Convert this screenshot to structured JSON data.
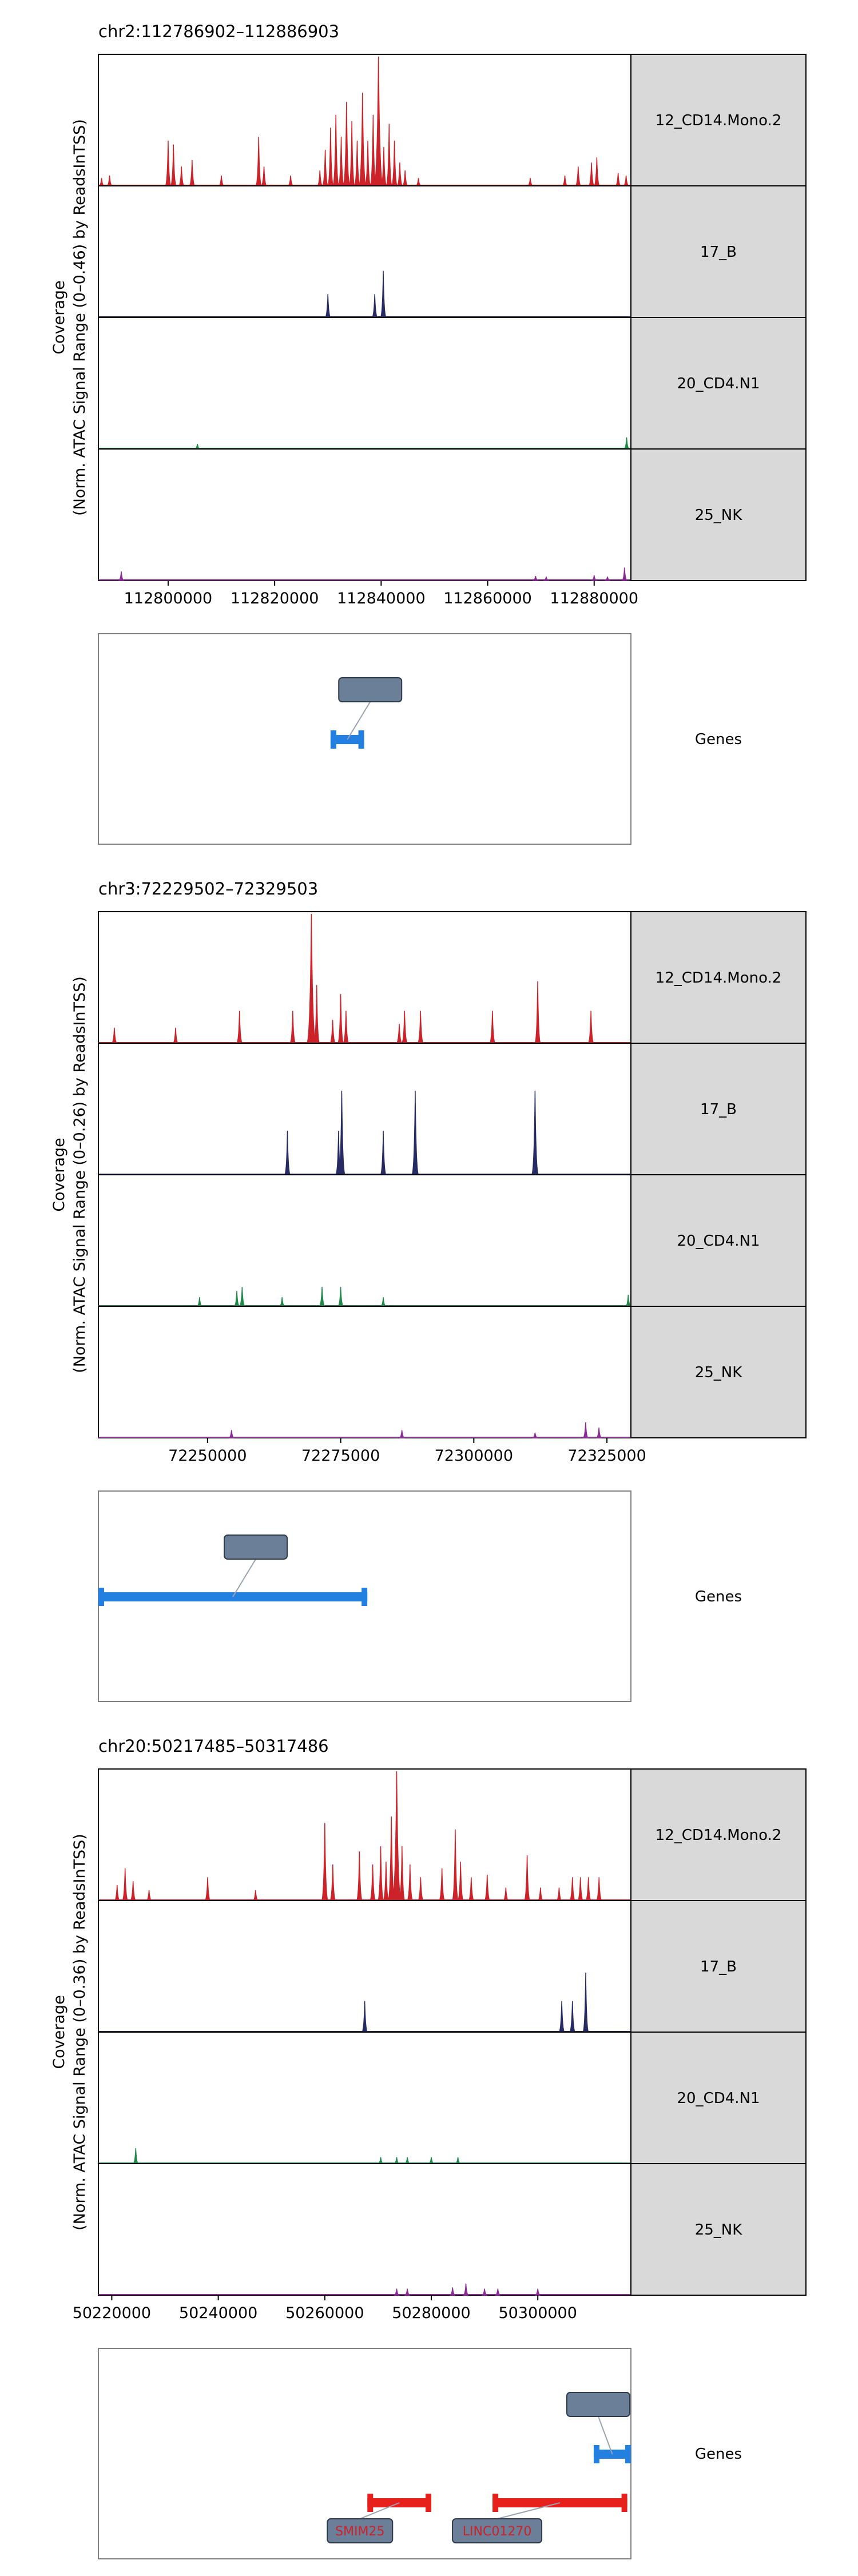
{
  "colors": {
    "12_CD14.Mono.2": "#cc2229",
    "17_B": "#262b63",
    "20_CD4.N1": "#1f8a48",
    "25_NK": "#8b2c96",
    "gene_plus": "#2380e0",
    "gene_minus": "#e8201c",
    "track_label_bg": "#d9d9d9",
    "gene_label_box": "#6b7f99"
  },
  "tracks": [
    "12_CD14.Mono.2",
    "17_B",
    "20_CD4.N1",
    "25_NK"
  ],
  "genes_label": "Genes",
  "chart_data": [
    {
      "type": "area",
      "title": "chr2:112786902–112886903",
      "ylabel_lines": [
        "Coverage",
        "(Norm. ATAC Signal Range (0–0.46) by ReadsInTSS)"
      ],
      "xlim": [
        112786902,
        112886903
      ],
      "xticks": [
        112800000,
        112820000,
        112840000,
        112860000,
        112880000
      ],
      "xtick_labels": [
        "112800000",
        "112820000",
        "112840000",
        "112860000",
        "112880000"
      ],
      "series": [
        {
          "name": "12_CD14.Mono.2",
          "peaks": [
            [
              112787500,
              0.06
            ],
            [
              112789000,
              0.08
            ],
            [
              112800000,
              0.35
            ],
            [
              112801000,
              0.32
            ],
            [
              112802500,
              0.15
            ],
            [
              112804500,
              0.2
            ],
            [
              112810000,
              0.08
            ],
            [
              112817000,
              0.38
            ],
            [
              112818000,
              0.15
            ],
            [
              112823000,
              0.08
            ],
            [
              112828500,
              0.12
            ],
            [
              112829500,
              0.28
            ],
            [
              112830500,
              0.45
            ],
            [
              112831500,
              0.55
            ],
            [
              112832500,
              0.38
            ],
            [
              112833500,
              0.65
            ],
            [
              112834500,
              0.5
            ],
            [
              112835500,
              0.35
            ],
            [
              112836500,
              0.72
            ],
            [
              112837500,
              0.35
            ],
            [
              112838500,
              0.55
            ],
            [
              112839500,
              1.0
            ],
            [
              112840500,
              0.3
            ],
            [
              112841500,
              0.48
            ],
            [
              112842500,
              0.35
            ],
            [
              112843500,
              0.18
            ],
            [
              112844500,
              0.12
            ],
            [
              112847000,
              0.06
            ],
            [
              112868000,
              0.06
            ],
            [
              112874500,
              0.08
            ],
            [
              112877000,
              0.15
            ],
            [
              112879500,
              0.18
            ],
            [
              112880500,
              0.22
            ],
            [
              112884500,
              0.1
            ],
            [
              112886000,
              0.08
            ]
          ]
        },
        {
          "name": "17_B",
          "peaks": [
            [
              112830000,
              0.18
            ],
            [
              112838800,
              0.18
            ],
            [
              112840400,
              0.36
            ]
          ]
        },
        {
          "name": "20_CD4.N1",
          "peaks": [
            [
              112805500,
              0.04
            ],
            [
              112886100,
              0.09
            ]
          ]
        },
        {
          "name": "25_NK",
          "peaks": [
            [
              112791200,
              0.07
            ],
            [
              112869000,
              0.035
            ],
            [
              112871000,
              0.03
            ],
            [
              112880000,
              0.04
            ],
            [
              112882500,
              0.03
            ],
            [
              112885700,
              0.1
            ]
          ]
        }
      ],
      "genes": [
        {
          "name": "",
          "strand": "+",
          "start": 112830500,
          "end": 112836800,
          "label_box": true
        }
      ]
    },
    {
      "type": "area",
      "title": "chr3:72229502–72329503",
      "ylabel_lines": [
        "Coverage",
        "(Norm. ATAC Signal Range (0–0.26) by ReadsInTSS)"
      ],
      "xlim": [
        72229502,
        72329503
      ],
      "xticks": [
        72250000,
        72275000,
        72300000,
        72325000
      ],
      "xtick_labels": [
        "72250000",
        "72275000",
        "72300000",
        "72325000"
      ],
      "series": [
        {
          "name": "12_CD14.Mono.2",
          "peaks": [
            [
              72232500,
              0.12
            ],
            [
              72244000,
              0.12
            ],
            [
              72256000,
              0.25
            ],
            [
              72266000,
              0.25
            ],
            [
              72269500,
              1.0
            ],
            [
              72270500,
              0.45
            ],
            [
              72273500,
              0.18
            ],
            [
              72275000,
              0.38
            ],
            [
              72276000,
              0.25
            ],
            [
              72286000,
              0.15
            ],
            [
              72287000,
              0.25
            ],
            [
              72290000,
              0.25
            ],
            [
              72303500,
              0.25
            ],
            [
              72312000,
              0.48
            ],
            [
              72322000,
              0.25
            ]
          ]
        },
        {
          "name": "17_B",
          "peaks": [
            [
              72265000,
              0.34
            ],
            [
              72274600,
              0.34
            ],
            [
              72275200,
              0.65
            ],
            [
              72283000,
              0.34
            ],
            [
              72289000,
              0.65
            ],
            [
              72311500,
              0.65
            ]
          ]
        },
        {
          "name": "20_CD4.N1",
          "peaks": [
            [
              72248500,
              0.07
            ],
            [
              72255500,
              0.12
            ],
            [
              72256500,
              0.15
            ],
            [
              72264000,
              0.07
            ],
            [
              72271500,
              0.15
            ],
            [
              72275000,
              0.15
            ],
            [
              72283000,
              0.07
            ],
            [
              72329000,
              0.09
            ]
          ]
        },
        {
          "name": "25_NK",
          "peaks": [
            [
              72254500,
              0.06
            ],
            [
              72286500,
              0.06
            ],
            [
              72311500,
              0.04
            ],
            [
              72321000,
              0.12
            ],
            [
              72323500,
              0.08
            ]
          ]
        }
      ],
      "genes": [
        {
          "name": "",
          "strand": "+",
          "start": 72229502,
          "end": 72280000,
          "label_box": true
        }
      ]
    },
    {
      "type": "area",
      "title": "chr20:50217485–50317486",
      "ylabel_lines": [
        "Coverage",
        "(Norm. ATAC Signal Range (0–0.36) by ReadsInTSS)"
      ],
      "xlim": [
        50217485,
        50317486
      ],
      "xticks": [
        50220000,
        50240000,
        50260000,
        50280000,
        50300000
      ],
      "xtick_labels": [
        "50220000",
        "50240000",
        "50260000",
        "50280000",
        "50300000"
      ],
      "series": [
        {
          "name": "12_CD14.Mono.2",
          "peaks": [
            [
              50221000,
              0.12
            ],
            [
              50222500,
              0.25
            ],
            [
              50224000,
              0.15
            ],
            [
              50227000,
              0.08
            ],
            [
              50238000,
              0.18
            ],
            [
              50247000,
              0.08
            ],
            [
              50260000,
              0.6
            ],
            [
              50261500,
              0.28
            ],
            [
              50266500,
              0.38
            ],
            [
              50269000,
              0.28
            ],
            [
              50270500,
              0.42
            ],
            [
              50271500,
              0.3
            ],
            [
              50272500,
              0.65
            ],
            [
              50273500,
              1.0
            ],
            [
              50274500,
              0.42
            ],
            [
              50276000,
              0.28
            ],
            [
              50278000,
              0.18
            ],
            [
              50282000,
              0.25
            ],
            [
              50284500,
              0.55
            ],
            [
              50285500,
              0.3
            ],
            [
              50287500,
              0.18
            ],
            [
              50290500,
              0.2
            ],
            [
              50294000,
              0.1
            ],
            [
              50298000,
              0.35
            ],
            [
              50300500,
              0.1
            ],
            [
              50304000,
              0.1
            ],
            [
              50306500,
              0.18
            ],
            [
              50308000,
              0.18
            ],
            [
              50309500,
              0.18
            ],
            [
              50311500,
              0.18
            ]
          ]
        },
        {
          "name": "17_B",
          "peaks": [
            [
              50267500,
              0.24
            ],
            [
              50304500,
              0.24
            ],
            [
              50306500,
              0.24
            ],
            [
              50309000,
              0.46
            ]
          ]
        },
        {
          "name": "20_CD4.N1",
          "peaks": [
            [
              50224500,
              0.12
            ],
            [
              50270500,
              0.05
            ],
            [
              50273500,
              0.05
            ],
            [
              50275500,
              0.05
            ],
            [
              50280000,
              0.05
            ],
            [
              50285000,
              0.05
            ]
          ]
        },
        {
          "name": "25_NK",
          "peaks": [
            [
              50273500,
              0.05
            ],
            [
              50275500,
              0.05
            ],
            [
              50284000,
              0.06
            ],
            [
              50286500,
              0.09
            ],
            [
              50290000,
              0.05
            ],
            [
              50292500,
              0.05
            ],
            [
              50300000,
              0.05
            ]
          ]
        }
      ],
      "genes": [
        {
          "name": "SMIM25",
          "strand": "-",
          "start": 50268000,
          "end": 50280000,
          "label_box": true
        },
        {
          "name": "LINC01270",
          "strand": "-",
          "start": 50291500,
          "end": 50316800,
          "label_box": true
        },
        {
          "name": "",
          "strand": "+",
          "start": 50310500,
          "end": 50317486,
          "label_box": true
        }
      ]
    }
  ]
}
